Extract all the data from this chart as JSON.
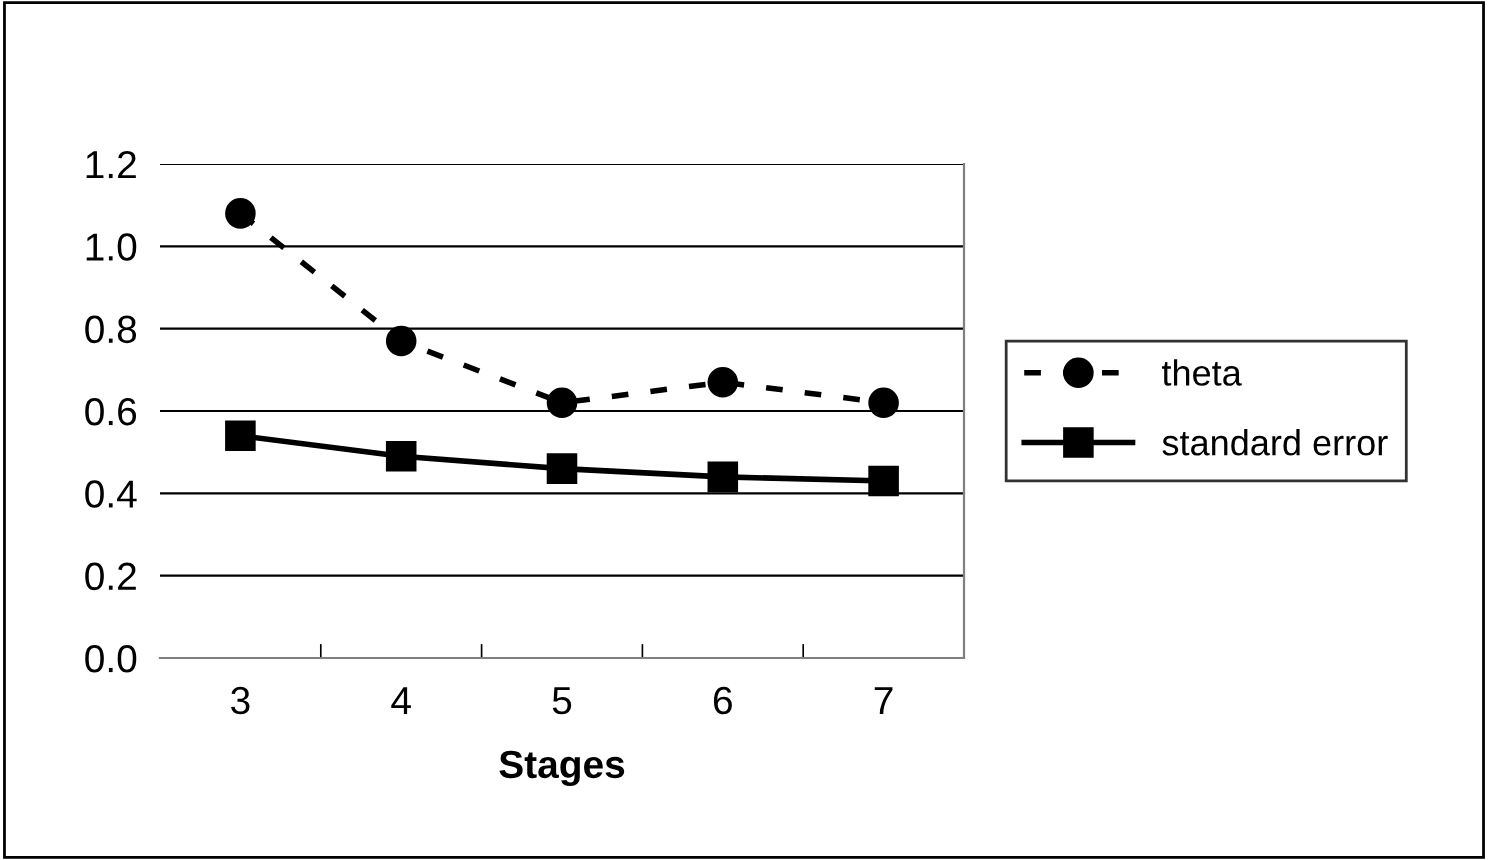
{
  "chart_data": {
    "type": "line",
    "xlabel": "Stages",
    "categories": [
      "3",
      "4",
      "5",
      "6",
      "7"
    ],
    "series": [
      {
        "name": "theta",
        "color": "#000000",
        "marker": "circle",
        "line_style": "dashed",
        "values": [
          1.08,
          0.77,
          0.62,
          0.67,
          0.62
        ]
      },
      {
        "name": "standard error",
        "color": "#000000",
        "marker": "square",
        "line_style": "solid",
        "values": [
          0.54,
          0.49,
          0.46,
          0.44,
          0.43
        ]
      }
    ],
    "ylim": [
      0,
      1.2
    ],
    "yticks": [
      {
        "value": 0,
        "label": "0.0"
      },
      {
        "value": 0.2,
        "label": "0.2"
      },
      {
        "value": 0.4,
        "label": "0.4"
      },
      {
        "value": 0.6,
        "label": "0.6"
      },
      {
        "value": 0.8,
        "label": "0.8"
      },
      {
        "value": 1.0,
        "label": "1.0"
      },
      {
        "value": 1.2,
        "label": "1.2"
      }
    ],
    "grid": "y",
    "legend": "right"
  }
}
